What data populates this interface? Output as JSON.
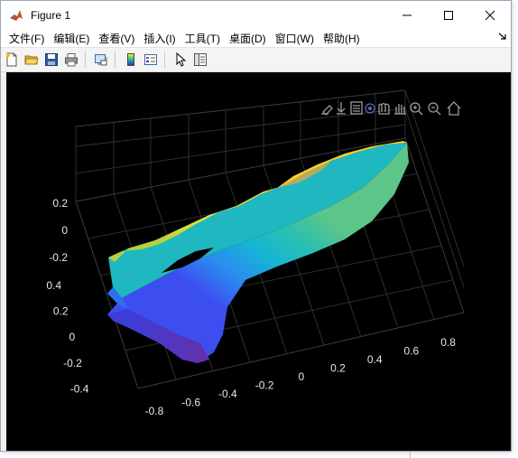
{
  "window": {
    "title": "Figure 1"
  },
  "menu": [
    "文件(F)",
    "编辑(E)",
    "查看(V)",
    "插入(I)",
    "工具(T)",
    "桌面(D)",
    "窗口(W)",
    "帮助(H)"
  ],
  "toolbar": {
    "buttons": [
      "new-figure",
      "open-file",
      "save-figure",
      "print-figure",
      "link-plot",
      "insert-colorbar",
      "insert-legend",
      "edit-plot",
      "property-inspector"
    ]
  },
  "axes_toolbar": [
    "edit-icon",
    "export-icon",
    "brush-icon",
    "data-tips-icon",
    "rotate-3d-icon",
    "pan-icon",
    "zoom-in-icon",
    "zoom-out-icon",
    "home-icon"
  ],
  "chart_data": {
    "type": "surface",
    "title": "",
    "colormap": "parula",
    "background": "#000000",
    "grid": true,
    "x_ticks": [
      "-0.8",
      "-0.6",
      "-0.4",
      "-0.2",
      "0",
      "0.2",
      "0.4",
      "0.6",
      "0.8"
    ],
    "y_ticks": [
      "-0.4",
      "-0.2",
      "0",
      "0.2",
      "0.4"
    ],
    "z_ticks": [
      "-0.2",
      "0",
      "0.2"
    ],
    "xlim": [
      -0.9,
      0.9
    ],
    "ylim": [
      -0.5,
      0.5
    ],
    "zlim": [
      -0.25,
      0.25
    ]
  }
}
